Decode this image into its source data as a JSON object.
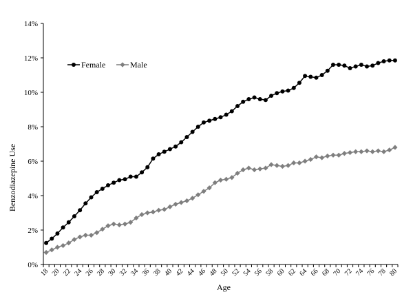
{
  "chart_data": {
    "type": "line",
    "xlabel": "Age",
    "ylabel": "Benzodiazepine Use",
    "ylim": [
      0,
      14
    ],
    "yticks": [
      "0%",
      "2%",
      "4%",
      "6%",
      "8%",
      "10%",
      "12%",
      "14%"
    ],
    "x": [
      18,
      19,
      20,
      21,
      22,
      23,
      24,
      25,
      26,
      27,
      28,
      29,
      30,
      31,
      32,
      33,
      34,
      35,
      36,
      37,
      38,
      39,
      40,
      41,
      42,
      43,
      44,
      45,
      46,
      47,
      48,
      49,
      50,
      51,
      52,
      53,
      54,
      55,
      56,
      57,
      58,
      59,
      60,
      61,
      62,
      63,
      64,
      65,
      66,
      67,
      68,
      69,
      70,
      71,
      72,
      73,
      74,
      75,
      76,
      77,
      78,
      79,
      80
    ],
    "xtick_labels": [
      "18",
      "20",
      "22",
      "24",
      "26",
      "28",
      "30",
      "32",
      "34",
      "36",
      "38",
      "40",
      "42",
      "44",
      "46",
      "48",
      "50",
      "52",
      "54",
      "56",
      "58",
      "60",
      "62",
      "64",
      "66",
      "68",
      "70",
      "72",
      "74",
      "76",
      "78",
      "80"
    ],
    "grid": false,
    "legend_position": "top-left",
    "series": [
      {
        "name": "Female",
        "color": "#000000",
        "marker": "circle",
        "values": [
          1.25,
          1.5,
          1.8,
          2.15,
          2.45,
          2.8,
          3.15,
          3.55,
          3.9,
          4.2,
          4.4,
          4.6,
          4.75,
          4.9,
          4.95,
          5.1,
          5.1,
          5.35,
          5.65,
          6.15,
          6.4,
          6.55,
          6.7,
          6.85,
          7.1,
          7.4,
          7.7,
          8.0,
          8.25,
          8.35,
          8.45,
          8.55,
          8.7,
          8.9,
          9.2,
          9.45,
          9.6,
          9.7,
          9.6,
          9.55,
          9.8,
          9.95,
          10.05,
          10.1,
          10.25,
          10.55,
          10.95,
          10.9,
          10.85,
          11.0,
          11.25,
          11.6,
          11.6,
          11.55,
          11.4,
          11.5,
          11.6,
          11.5,
          11.55,
          11.7,
          11.8,
          11.85,
          11.85
        ]
      },
      {
        "name": "Male",
        "color": "#7f7f7f",
        "marker": "diamond",
        "values": [
          0.7,
          0.85,
          1.0,
          1.1,
          1.25,
          1.45,
          1.6,
          1.7,
          1.7,
          1.85,
          2.05,
          2.25,
          2.35,
          2.3,
          2.35,
          2.45,
          2.7,
          2.9,
          3.0,
          3.05,
          3.15,
          3.2,
          3.35,
          3.5,
          3.6,
          3.7,
          3.85,
          4.05,
          4.25,
          4.45,
          4.75,
          4.9,
          4.95,
          5.05,
          5.3,
          5.5,
          5.6,
          5.5,
          5.55,
          5.6,
          5.8,
          5.75,
          5.7,
          5.75,
          5.9,
          5.9,
          6.0,
          6.1,
          6.25,
          6.2,
          6.3,
          6.35,
          6.35,
          6.45,
          6.5,
          6.55,
          6.55,
          6.6,
          6.55,
          6.6,
          6.55,
          6.65,
          6.8
        ]
      }
    ]
  }
}
